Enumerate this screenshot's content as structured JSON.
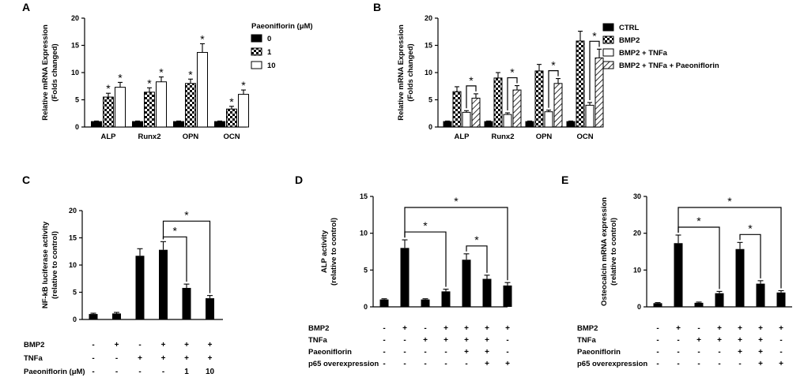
{
  "chart_data": [
    {
      "panel": "A",
      "type": "bar",
      "ylabel": [
        "Relative mRNA Expression",
        "(Folds changed)"
      ],
      "ylim": [
        0,
        20
      ],
      "yticks": [
        0,
        5,
        10,
        15,
        20
      ],
      "categories": [
        "ALP",
        "Runx2",
        "OPN",
        "OCN"
      ],
      "legend_title": "Paeoniflorin (μM)",
      "series": [
        {
          "name": "0",
          "pattern": "black",
          "values": [
            1,
            1,
            1,
            1
          ],
          "errors": [
            0.1,
            0.1,
            0.1,
            0.1
          ],
          "star": [
            false,
            false,
            false,
            false
          ]
        },
        {
          "name": "1",
          "pattern": "checker",
          "values": [
            5.5,
            6.4,
            8.0,
            3.3
          ],
          "errors": [
            0.7,
            0.8,
            0.8,
            0.5
          ],
          "star": [
            true,
            true,
            true,
            true
          ]
        },
        {
          "name": "10",
          "pattern": "white",
          "values": [
            7.3,
            8.3,
            13.7,
            6.0
          ],
          "errors": [
            0.9,
            0.9,
            1.6,
            0.8
          ],
          "star": [
            true,
            true,
            true,
            true
          ]
        }
      ]
    },
    {
      "panel": "B",
      "type": "bar",
      "ylabel": [
        "Relative mRNA Expression",
        "(Folds changed)"
      ],
      "ylim": [
        0,
        20
      ],
      "yticks": [
        0,
        5,
        10,
        15,
        20
      ],
      "categories": [
        "ALP",
        "Runx2",
        "OPN",
        "OCN"
      ],
      "series": [
        {
          "name": "CTRL",
          "pattern": "black",
          "values": [
            1,
            1,
            1,
            1
          ],
          "errors": [
            0.1,
            0.1,
            0.1,
            0.1
          ]
        },
        {
          "name": "BMP2",
          "pattern": "checker",
          "values": [
            6.5,
            9.0,
            10.3,
            15.8
          ],
          "errors": [
            0.9,
            1.0,
            1.2,
            1.8
          ]
        },
        {
          "name": "BMP2 + TNFa",
          "pattern": "white",
          "values": [
            2.7,
            2.3,
            2.8,
            4.0
          ],
          "errors": [
            0.3,
            0.3,
            0.3,
            0.5
          ]
        },
        {
          "name": "BMP2 + TNFa + Paeoniflorin",
          "pattern": "hatch",
          "values": [
            5.3,
            6.8,
            8.0,
            12.7
          ],
          "errors": [
            0.8,
            0.8,
            0.9,
            1.6
          ]
        }
      ]
    },
    {
      "panel": "C",
      "type": "bar",
      "ylabel": [
        "NF-kB luciferase activity",
        "(relative to control)"
      ],
      "ylim": [
        0,
        20
      ],
      "yticks": [
        0,
        5,
        10,
        15,
        20
      ],
      "values": [
        1.0,
        1.1,
        11.7,
        12.8,
        5.8,
        3.9
      ],
      "errors": [
        0.15,
        0.2,
        1.3,
        1.5,
        0.7,
        0.5
      ],
      "conditions": [
        {
          "label": "BMP2",
          "marks": [
            "-",
            "+",
            "-",
            "+",
            "+",
            "+"
          ]
        },
        {
          "label": "TNFa",
          "marks": [
            "-",
            "-",
            "+",
            "+",
            "+",
            "+"
          ]
        },
        {
          "label": "Paeoniflorin (μM)",
          "marks": [
            "-",
            "-",
            "-",
            "-",
            "1",
            "10"
          ]
        }
      ],
      "brackets": [
        {
          "from": 3,
          "to": 4,
          "label": "*"
        },
        {
          "from": 3,
          "to": 5,
          "label": "*"
        }
      ]
    },
    {
      "panel": "D",
      "type": "bar",
      "ylabel": [
        "ALP activity",
        "(relative to control)"
      ],
      "ylim": [
        0,
        15
      ],
      "yticks": [
        0,
        5,
        10,
        15
      ],
      "values": [
        1.0,
        8.0,
        1.0,
        2.1,
        6.4,
        3.8,
        2.9
      ],
      "errors": [
        0.1,
        1.1,
        0.1,
        0.3,
        0.8,
        0.5,
        0.4
      ],
      "conditions": [
        {
          "label": "BMP2",
          "marks": [
            "-",
            "+",
            "-",
            "+",
            "+",
            "+",
            "+"
          ]
        },
        {
          "label": "TNFa",
          "marks": [
            "-",
            "-",
            "+",
            "+",
            "+",
            "+",
            "-"
          ]
        },
        {
          "label": "Paeoniflorin",
          "marks": [
            "-",
            "-",
            "-",
            "-",
            "+",
            "+",
            "-"
          ]
        },
        {
          "label": "p65 overexpression",
          "marks": [
            "-",
            "-",
            "-",
            "-",
            "-",
            "+",
            "+"
          ]
        }
      ],
      "brackets": [
        {
          "from": 1,
          "to": 3,
          "label": "*"
        },
        {
          "from": 4,
          "to": 5,
          "label": "*"
        },
        {
          "from": 1,
          "to": 6,
          "label": "*"
        }
      ]
    },
    {
      "panel": "E",
      "type": "bar",
      "ylabel": [
        "Osteocalcin mRNA expression",
        "(relative to control)"
      ],
      "ylim": [
        0,
        30
      ],
      "yticks": [
        0,
        10,
        20,
        30
      ],
      "values": [
        1.0,
        17.3,
        1.1,
        3.7,
        15.7,
        6.3,
        3.9
      ],
      "errors": [
        0.15,
        2.2,
        0.2,
        0.5,
        1.8,
        0.8,
        0.5
      ],
      "conditions": [
        {
          "label": "BMP2",
          "marks": [
            "-",
            "+",
            "-",
            "+",
            "+",
            "+",
            "+"
          ]
        },
        {
          "label": "TNFa",
          "marks": [
            "-",
            "-",
            "+",
            "+",
            "+",
            "+",
            "-"
          ]
        },
        {
          "label": "Paeoniflorin",
          "marks": [
            "-",
            "-",
            "-",
            "-",
            "+",
            "+",
            "-"
          ]
        },
        {
          "label": "p65 overexpression",
          "marks": [
            "-",
            "-",
            "-",
            "-",
            "-",
            "+",
            "+"
          ]
        }
      ],
      "brackets": [
        {
          "from": 1,
          "to": 3,
          "label": "*"
        },
        {
          "from": 4,
          "to": 5,
          "label": "*"
        },
        {
          "from": 1,
          "to": 6,
          "label": "*"
        }
      ]
    }
  ]
}
